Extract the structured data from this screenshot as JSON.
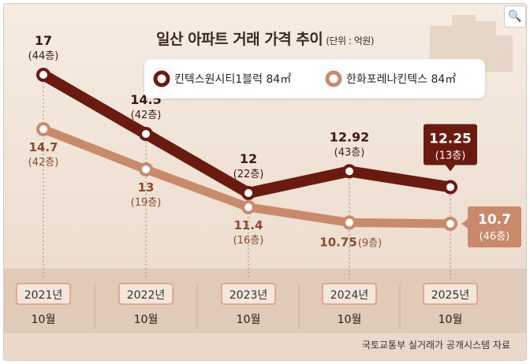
{
  "title": "일산 아파트 거래 가격 추이",
  "unit": "(단위 : 억원)",
  "source": "국토교통부 실거래가 공개시스템 자료",
  "icons": {
    "search": "search-icon"
  },
  "colors": {
    "series1": "#6b1a10",
    "series2": "#c98a6c",
    "background": "#efe2d6",
    "xaxis_band": "#d8c3ae"
  },
  "chart_data": {
    "type": "line",
    "title": "일산 아파트 거래 가격 추이",
    "unit_label": "(단위 : 억원)",
    "categories": [
      {
        "year": "2021년",
        "month": "10월"
      },
      {
        "year": "2022년",
        "month": "10월"
      },
      {
        "year": "2023년",
        "month": "10월"
      },
      {
        "year": "2024년",
        "month": "10월"
      },
      {
        "year": "2025년",
        "month": "10월"
      }
    ],
    "ylim": [
      9,
      18
    ],
    "grid": false,
    "legend_position": "top-right",
    "series": [
      {
        "name": "킨텍스원시티1블럭 84㎡",
        "color": "#6b1a10",
        "values": [
          17,
          14.5,
          12,
          12.92,
          12.25
        ],
        "value_labels": [
          "17",
          "14.5",
          "12",
          "12.92",
          "12.25"
        ],
        "floor_labels": [
          "(44층)",
          "(42층)",
          "(22층)",
          "(43층)",
          "(13층)"
        ]
      },
      {
        "name": "한화포레나킨텍스 84㎡",
        "color": "#c98a6c",
        "values": [
          14.7,
          13,
          11.4,
          10.75,
          10.7
        ],
        "value_labels": [
          "14.7",
          "13",
          "11.4",
          "10.75",
          "10.7"
        ],
        "floor_labels": [
          "(42층)",
          "(19층)",
          "(16층)",
          "(9층)",
          "(46층)"
        ]
      }
    ]
  }
}
